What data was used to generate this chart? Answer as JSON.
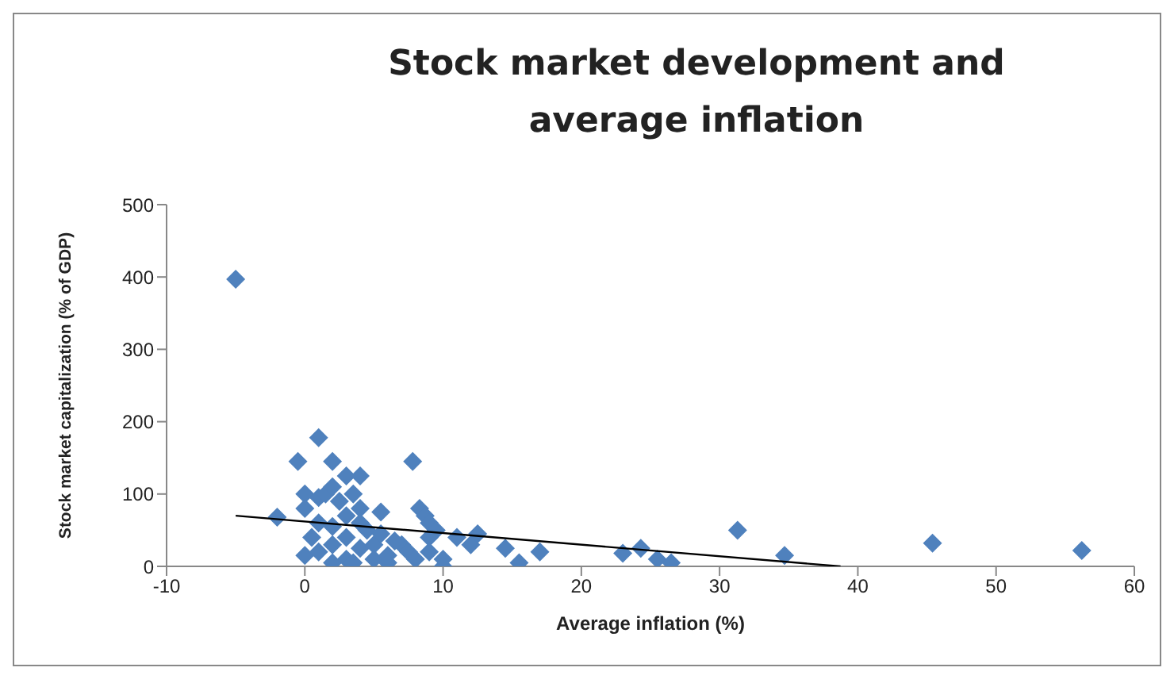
{
  "chart_data": {
    "type": "scatter",
    "title": "Stock market development and average inflation",
    "xlabel": "Average inflation (%)",
    "ylabel": "Stock market capitalization (% of GDP)",
    "xlim": [
      -10,
      60
    ],
    "xticks": [
      -10,
      0,
      10,
      20,
      30,
      40,
      50,
      60
    ],
    "ylim": [
      0,
      500
    ],
    "yticks": [
      0,
      100,
      200,
      300,
      400,
      500
    ],
    "marker": "diamond",
    "series": [
      {
        "color": "#4f81bd",
        "x": [
          -5,
          -2,
          -0.5,
          1,
          2,
          3,
          4,
          7.8,
          0,
          0,
          0,
          0.5,
          1,
          1,
          1,
          1.5,
          2,
          2,
          2,
          2.5,
          3,
          3,
          3,
          3.5,
          4,
          4,
          4,
          4.5,
          5,
          5,
          5.5,
          5.5,
          6,
          6,
          7,
          7.5,
          8,
          8.3,
          8.7,
          9,
          9,
          9,
          9.5,
          10,
          10,
          12,
          12.5,
          14.5,
          15.5,
          17,
          23,
          24.3,
          25.5,
          26.5,
          31.3,
          34.7,
          45.4,
          56.2,
          2,
          3.5,
          6.5,
          11
        ],
        "values": [
          397,
          68,
          145,
          178,
          145,
          125,
          125,
          145,
          100,
          80,
          15,
          40,
          95,
          60,
          20,
          100,
          110,
          5,
          30,
          90,
          70,
          40,
          10,
          5,
          80,
          60,
          25,
          50,
          30,
          10,
          75,
          45,
          15,
          5,
          30,
          20,
          10,
          80,
          70,
          60,
          40,
          20,
          50,
          10,
          0,
          30,
          45,
          25,
          5,
          20,
          18,
          25,
          10,
          5,
          50,
          15,
          32,
          22,
          55,
          100,
          35,
          40
        ]
      },
      {
        "type": "line",
        "color": "#000000",
        "marker": "none",
        "x": [
          -5,
          38.75
        ],
        "values": [
          70,
          0
        ]
      }
    ]
  }
}
